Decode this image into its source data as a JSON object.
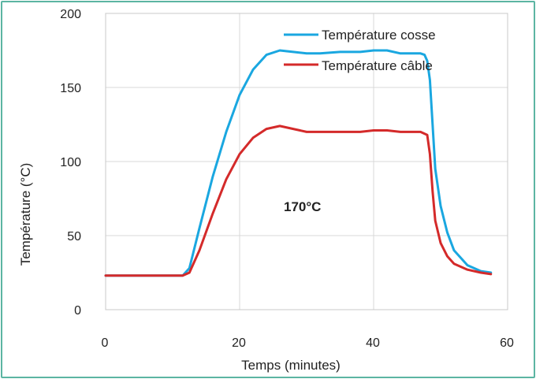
{
  "chart_data": {
    "type": "line",
    "title": "",
    "xlabel": "Temps (minutes)",
    "ylabel": "Température (°C)",
    "xlim": [
      0,
      60
    ],
    "ylim": [
      0,
      200
    ],
    "x_ticks": [
      "0",
      "20",
      "40",
      "60"
    ],
    "y_ticks": [
      "0",
      "50",
      "100",
      "150",
      "200"
    ],
    "grid": true,
    "legend_position": "top-right",
    "annotation": "170°C",
    "series": [
      {
        "name": "Température cosse",
        "color": "#1aa7e0",
        "x": [
          0,
          5,
          10,
          11.5,
          12.5,
          14,
          16,
          18,
          20,
          22,
          24,
          26,
          28,
          30,
          32,
          35,
          38,
          40,
          42,
          44,
          46,
          47,
          47.6,
          48,
          48.4,
          48.8,
          49.2,
          50,
          51,
          52,
          54,
          56,
          57.5
        ],
        "y": [
          23,
          23,
          23,
          23,
          28,
          55,
          90,
          120,
          145,
          162,
          172,
          175,
          174,
          173,
          173,
          174,
          174,
          175,
          175,
          173,
          173,
          173,
          172,
          168,
          155,
          125,
          95,
          70,
          52,
          40,
          30,
          26,
          25
        ]
      },
      {
        "name": "Température câble",
        "color": "#d42a2a",
        "x": [
          0,
          5,
          10,
          11.5,
          12.5,
          14,
          16,
          18,
          20,
          22,
          24,
          26,
          28,
          30,
          32,
          35,
          38,
          40,
          42,
          44,
          46,
          47,
          48,
          48.4,
          48.8,
          49.2,
          50,
          51,
          52,
          54,
          56,
          57.5
        ],
        "y": [
          23,
          23,
          23,
          23,
          25,
          40,
          65,
          88,
          105,
          116,
          122,
          124,
          122,
          120,
          120,
          120,
          120,
          121,
          121,
          120,
          120,
          120,
          118,
          105,
          80,
          60,
          45,
          36,
          31,
          27,
          25,
          24
        ]
      }
    ]
  }
}
